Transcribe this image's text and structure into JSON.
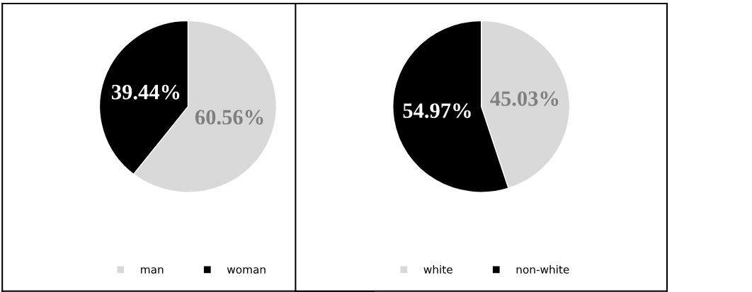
{
  "chart_data": [
    {
      "type": "pie",
      "categories": [
        "man",
        "woman"
      ],
      "values": [
        60.56,
        39.44
      ],
      "colors": [
        "#d9d9d9",
        "#000000"
      ],
      "value_labels": [
        "60.56%",
        "39.44%"
      ],
      "legend": "bottom"
    },
    {
      "type": "pie",
      "categories": [
        "white",
        "non-white"
      ],
      "values": [
        45.03,
        54.97
      ],
      "colors": [
        "#d9d9d9",
        "#000000"
      ],
      "value_labels": [
        "45.03%",
        "54.97%"
      ],
      "legend": "bottom"
    }
  ]
}
